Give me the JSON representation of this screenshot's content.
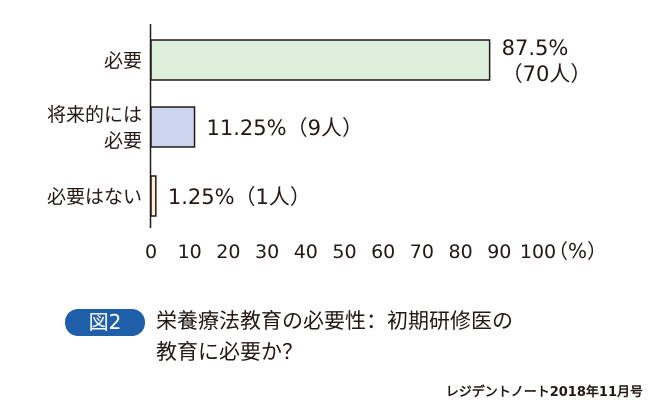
{
  "chart_data": {
    "type": "bar",
    "orientation": "horizontal",
    "categories": [
      [
        "必要"
      ],
      [
        "将来的には",
        "必要"
      ],
      [
        "必要はない"
      ]
    ],
    "values": [
      87.5,
      11.25,
      1.25
    ],
    "data_labels": [
      [
        "87.5%",
        "（70人）"
      ],
      [
        "11.25%（9人）"
      ],
      [
        "1.25%（1人）"
      ]
    ],
    "bar_colors": [
      "#ddf0dc",
      "#cdd5ee",
      "#fdf0d2"
    ],
    "bar_stroke": "#231815",
    "x_ticks": [
      "0",
      "10",
      "20",
      "30",
      "40",
      "50",
      "60",
      "70",
      "80",
      "90",
      "100"
    ],
    "x_unit": "（%）",
    "xlim": [
      0,
      100
    ],
    "grid": false,
    "legend": "none"
  },
  "figure": {
    "badge": "図2",
    "title_lines": [
      "栄養療法教育の必要性：初期研修医の",
      "教育に必要か？"
    ]
  },
  "source": "レジデントノート2018年11月号"
}
